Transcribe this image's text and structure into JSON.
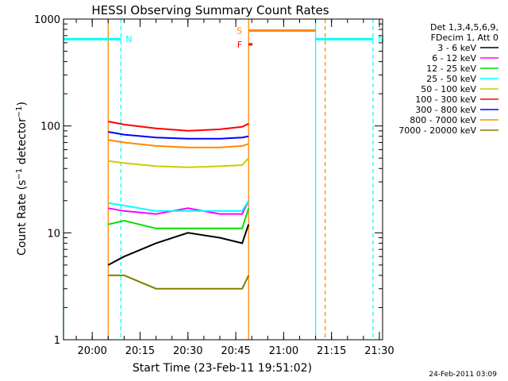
{
  "chart_data": {
    "type": "line",
    "title": "HESSI Observing Summary Count Rates",
    "xlabel": "Start Time (23-Feb-11 19:51:02)",
    "ylabel": "Count Rate (s⁻¹ detector⁻¹)",
    "y_scale": "log",
    "ylim": [
      1,
      1000
    ],
    "y_ticks": [
      "1",
      "10",
      "100",
      "1000"
    ],
    "xlim": [
      "19:51",
      "21:31"
    ],
    "x_ticks": [
      "20:00",
      "20:15",
      "20:30",
      "20:45",
      "21:00",
      "21:15",
      "21:30"
    ],
    "footer_date": "24-Feb-2011 03:09",
    "legend_placement": "right",
    "legend_header": [
      "Det 1,3,4,5,6,9,",
      "FDecim 1, Att 0"
    ],
    "series": [
      {
        "name": "3 - 6 keV",
        "color": "#000000",
        "x": [
          "20:05",
          "20:10",
          "20:20",
          "20:30",
          "20:40",
          "20:47",
          "20:49"
        ],
        "values": [
          5,
          6,
          8,
          10,
          9,
          8,
          12
        ]
      },
      {
        "name": "6 - 12 keV",
        "color": "#ff00ff",
        "x": [
          "20:05",
          "20:10",
          "20:20",
          "20:30",
          "20:40",
          "20:47",
          "20:49"
        ],
        "values": [
          17,
          16,
          15,
          17,
          15,
          15,
          20
        ]
      },
      {
        "name": "12 - 25 keV",
        "color": "#00e000",
        "x": [
          "20:05",
          "20:10",
          "20:20",
          "20:30",
          "20:40",
          "20:47",
          "20:49"
        ],
        "values": [
          12,
          13,
          11,
          11,
          11,
          11,
          17
        ]
      },
      {
        "name": "25 - 50 keV",
        "color": "#00ffff",
        "x": [
          "20:05",
          "20:10",
          "20:20",
          "20:30",
          "20:40",
          "20:47",
          "20:49"
        ],
        "values": [
          19,
          18,
          16,
          16,
          16,
          16,
          20
        ]
      },
      {
        "name": "50 - 100 keV",
        "color": "#cccc00",
        "x": [
          "20:05",
          "20:10",
          "20:20",
          "20:30",
          "20:40",
          "20:47",
          "20:49"
        ],
        "values": [
          47,
          45,
          42,
          41,
          42,
          43,
          50
        ]
      },
      {
        "name": "100 - 300 keV",
        "color": "#ff0000",
        "x": [
          "20:05",
          "20:10",
          "20:20",
          "20:30",
          "20:40",
          "20:47",
          "20:49"
        ],
        "values": [
          110,
          103,
          95,
          90,
          93,
          98,
          105
        ]
      },
      {
        "name": "300 - 800 keV",
        "color": "#0000ff",
        "x": [
          "20:05",
          "20:10",
          "20:20",
          "20:30",
          "20:40",
          "20:47",
          "20:49"
        ],
        "values": [
          88,
          83,
          78,
          76,
          76,
          78,
          80
        ]
      },
      {
        "name": "800 - 7000 keV",
        "color": "#ff8800",
        "x": [
          "20:05",
          "20:10",
          "20:20",
          "20:30",
          "20:40",
          "20:47",
          "20:49"
        ],
        "values": [
          74,
          70,
          65,
          63,
          63,
          65,
          68
        ]
      },
      {
        "name": "7000 - 20000 keV",
        "color": "#808000",
        "x": [
          "20:05",
          "20:10",
          "20:20",
          "20:30",
          "20:40",
          "20:47",
          "20:49"
        ],
        "values": [
          4,
          4,
          3,
          3,
          3,
          3,
          4
        ]
      }
    ],
    "annotations": [
      {
        "label": "N",
        "color": "#00ffff",
        "x_start": "19:51",
        "x_end": "20:09",
        "value": 650
      },
      {
        "label": "N",
        "color": "#00ffff",
        "x_start": "21:10",
        "x_end": "21:28",
        "value": 650
      },
      {
        "label": "S",
        "color": "#ff8800",
        "x_start": "20:49",
        "x_end": "21:10",
        "value": 780
      },
      {
        "label": "F",
        "color": "#ff0000",
        "x_start": "20:49",
        "x_end": "20:49",
        "value": 580
      }
    ],
    "vertical_markers": [
      {
        "color": "#00ffff",
        "style": "solid",
        "x": "19:51"
      },
      {
        "color": "#00ffff",
        "style": "dashed",
        "x": "20:09"
      },
      {
        "color": "#00ffff",
        "style": "solid",
        "x": "21:10"
      },
      {
        "color": "#00ffff",
        "style": "dashed",
        "x": "21:28"
      },
      {
        "color": "#ff8800",
        "style": "solid",
        "x": "20:05"
      },
      {
        "color": "#ff8800",
        "style": "solid",
        "x": "20:49"
      },
      {
        "color": "#ff8800",
        "style": "dashed",
        "x": "21:13"
      }
    ]
  }
}
